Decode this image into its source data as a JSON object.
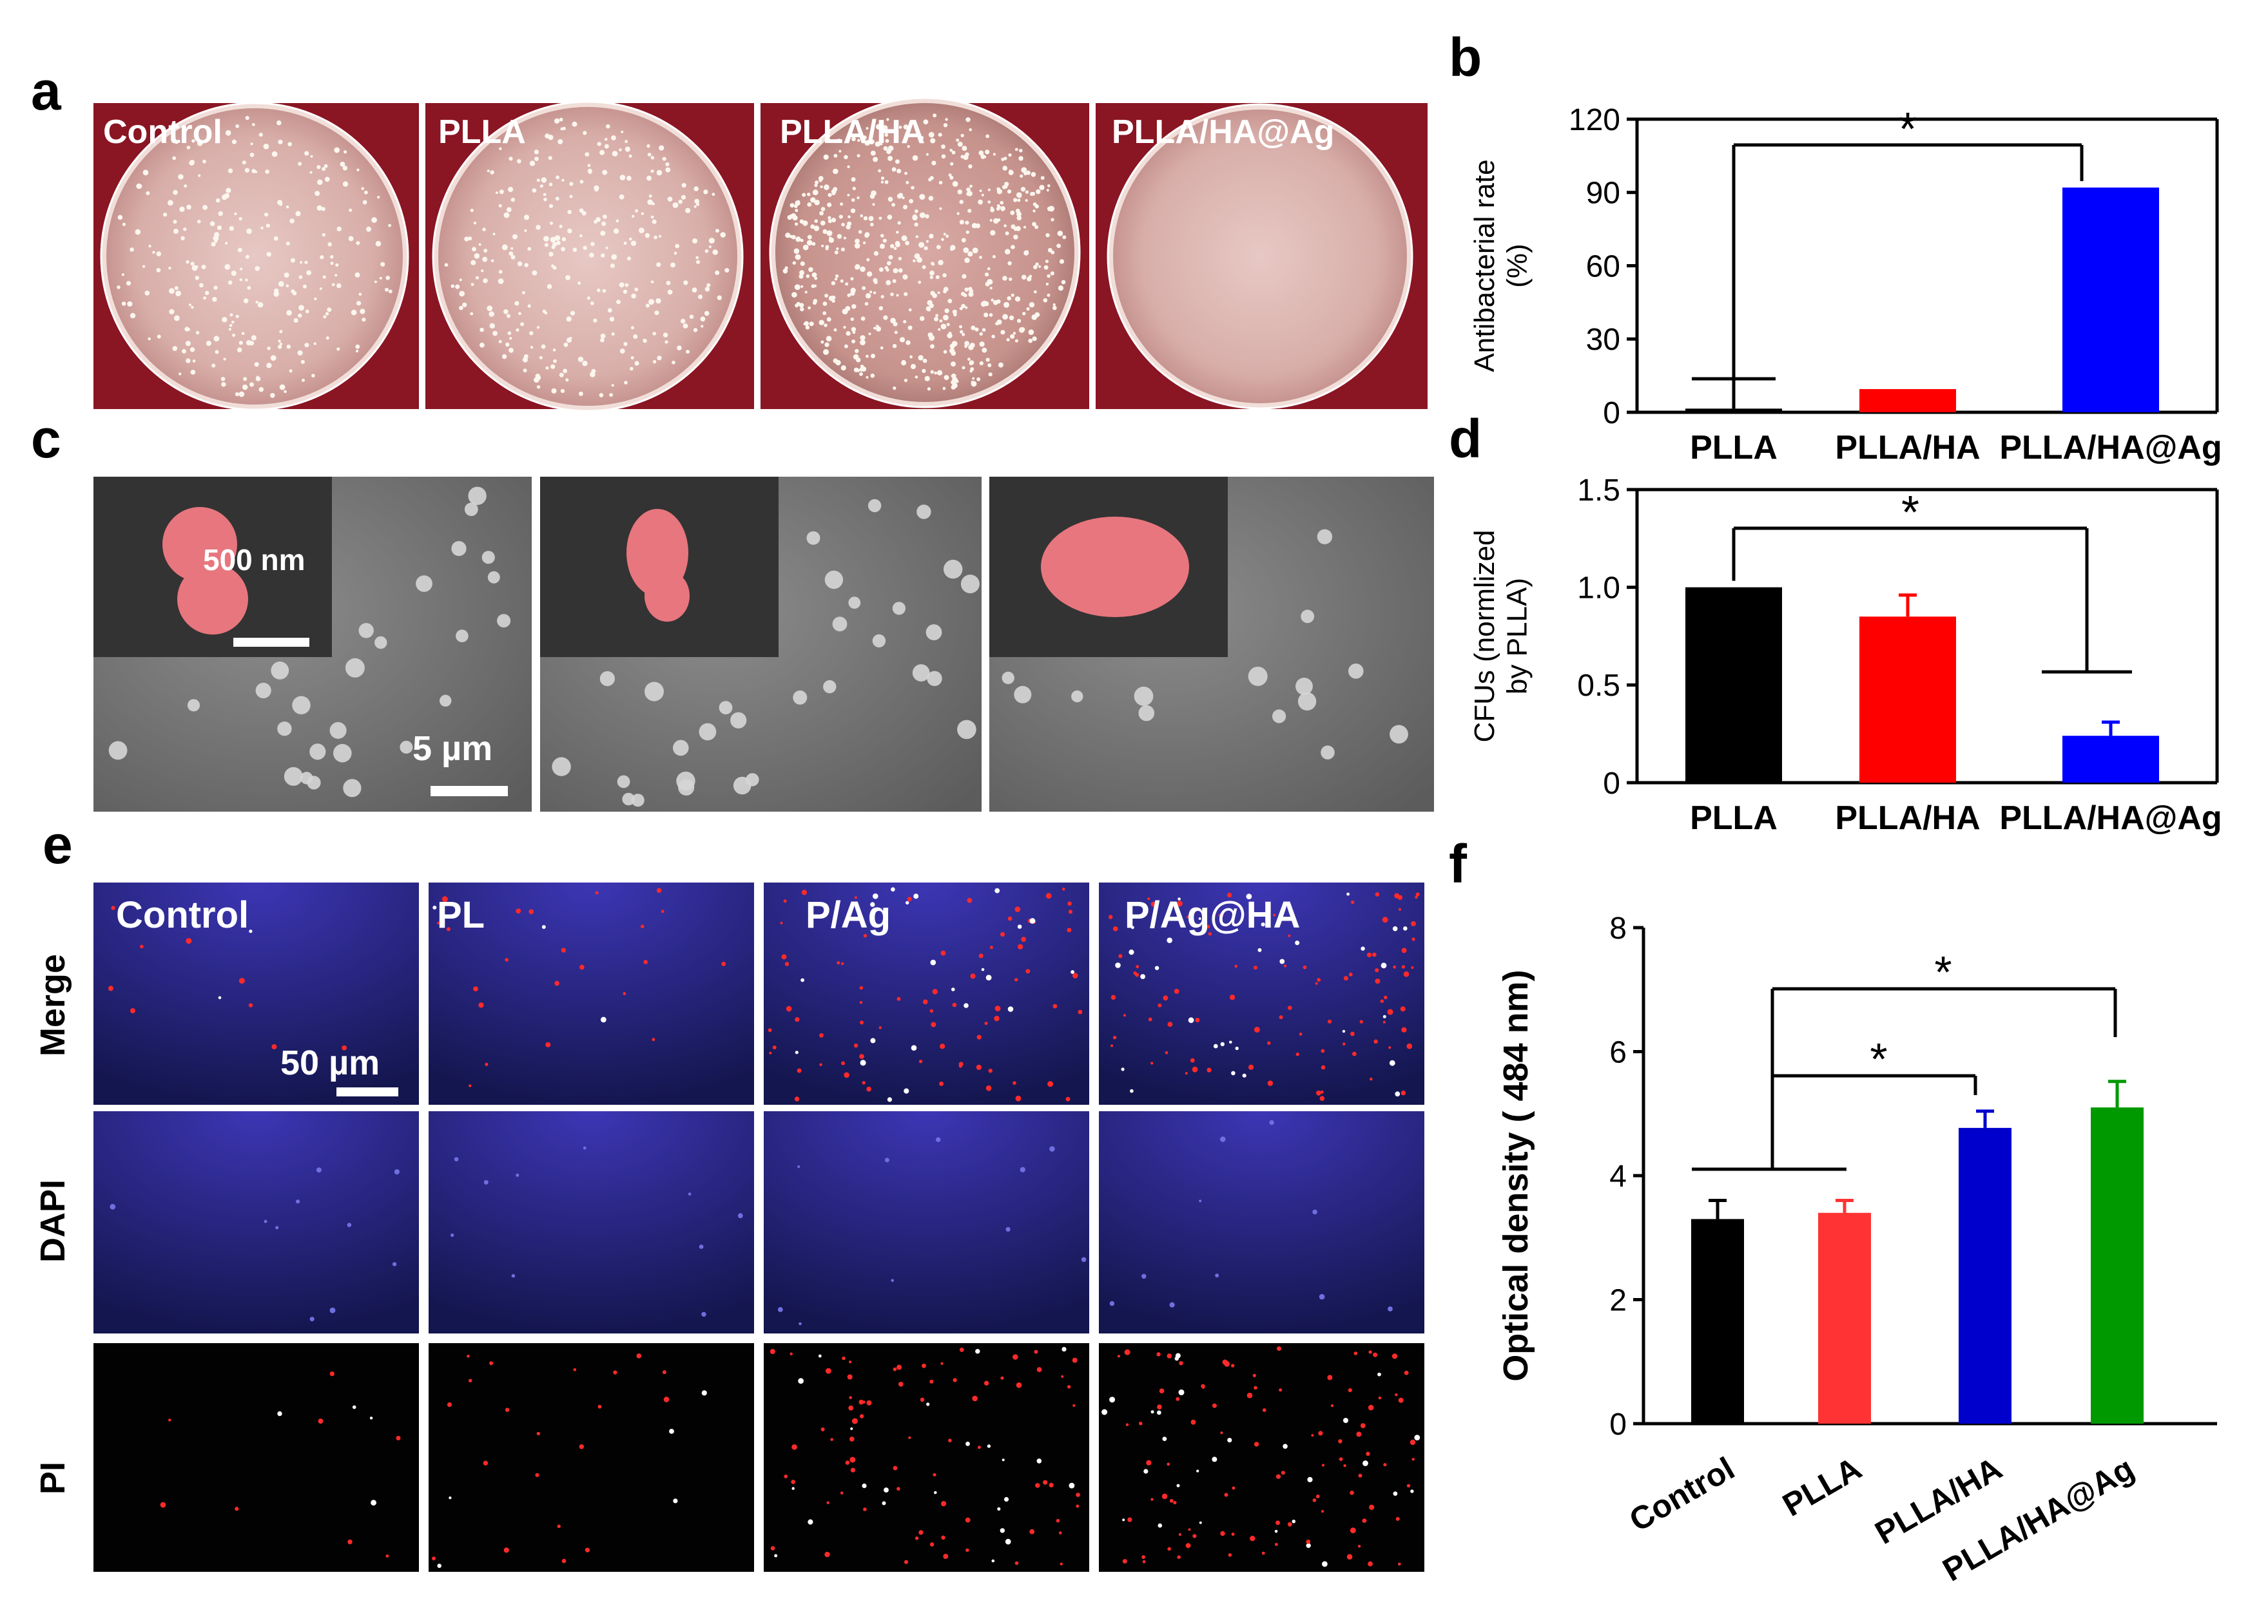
{
  "panel_letters": {
    "a": "a",
    "b": "b",
    "c": "c",
    "d": "d",
    "e": "e",
    "f": "f"
  },
  "panel_a": {
    "background": "#8a1523",
    "plates": [
      {
        "label": "Control",
        "colony_density": "high"
      },
      {
        "label": "PLLA",
        "colony_density": "high"
      },
      {
        "label": "PLLA/HA",
        "colony_density": "very high"
      },
      {
        "label": "PLLA/HA@Ag",
        "colony_density": "none"
      }
    ]
  },
  "panel_c": {
    "inset_scale_label": "500 nm",
    "main_scale_label": "5 µm",
    "highlight_color": "#e8767e"
  },
  "panel_e": {
    "columns": [
      "Control",
      "PL",
      "P/Ag",
      "P/Ag@HA"
    ],
    "rows": [
      "Merge",
      "DAPI",
      "PI"
    ],
    "scale_label": "50 µm",
    "dapi_color": "#2a2a8a",
    "pi_color": "#ff2020"
  },
  "chart_data": [
    {
      "id": "b",
      "type": "bar",
      "categories": [
        "PLLA",
        "PLLA/HA",
        "PLLA/HA@Ag"
      ],
      "values": [
        1.5,
        9.5,
        92
      ],
      "colors": [
        "#000000",
        "#ff0000",
        "#0000ff"
      ],
      "ylabel_line1": "Antibacterial rate",
      "ylabel_line2": "(%)",
      "ylim": [
        0,
        120
      ],
      "yticks": [
        "0",
        "30",
        "60",
        "90",
        "120"
      ],
      "significance": "*"
    },
    {
      "id": "d",
      "type": "bar",
      "categories": [
        "PLLA",
        "PLLA/HA",
        "PLLA/HA@Ag"
      ],
      "values": [
        1.0,
        0.85,
        0.24
      ],
      "errors": [
        0,
        0.11,
        0.07
      ],
      "colors": [
        "#000000",
        "#ff0000",
        "#0000ff"
      ],
      "ylabel_line1": "CFUs (normlized",
      "ylabel_line2": "by PLLA)",
      "ylim": [
        0,
        1.5
      ],
      "yticks": [
        "0",
        "0.5",
        "1.0",
        "1.5"
      ],
      "significance": "*"
    },
    {
      "id": "f",
      "type": "bar",
      "categories": [
        "Control",
        "PLLA",
        "PLLA/HA",
        "PLLA/HA@Ag"
      ],
      "values": [
        3.3,
        3.4,
        4.77,
        5.1
      ],
      "errors": [
        0.3,
        0.2,
        0.27,
        0.42
      ],
      "colors": [
        "#000000",
        "#ff3333",
        "#0000cc",
        "#009900"
      ],
      "ylabel": "Optical density ( 484 nm)",
      "ylim": [
        0,
        8
      ],
      "yticks": [
        "0",
        "2",
        "4",
        "6",
        "8"
      ],
      "significance": [
        "*",
        "*"
      ]
    }
  ]
}
